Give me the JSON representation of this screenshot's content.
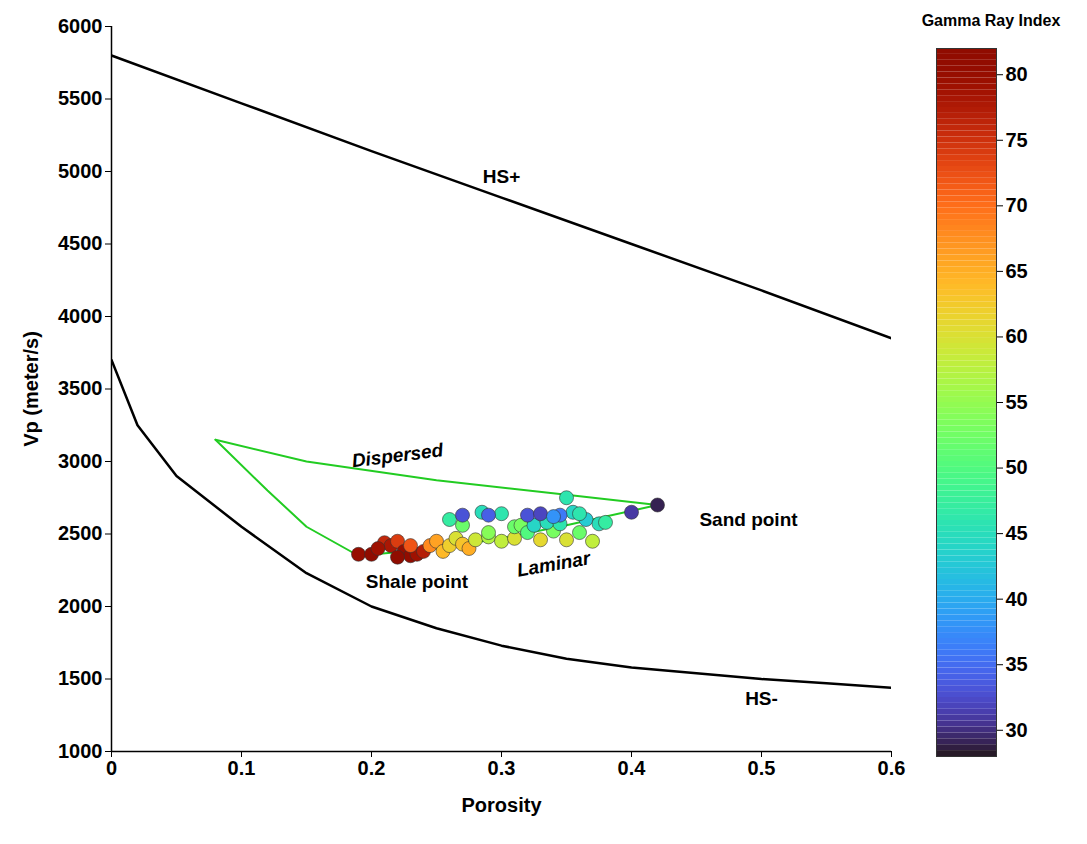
{
  "chart_data": {
    "type": "scatter",
    "x_label": "Porosity",
    "y_label": "Vp (meter/s)",
    "xlim": [
      0,
      0.6
    ],
    "xticks": [
      0,
      0.1,
      0.2,
      0.3,
      0.4,
      0.5,
      0.6
    ],
    "ylim": [
      1000,
      6000
    ],
    "yticks": [
      1000,
      1500,
      2000,
      2500,
      3000,
      3500,
      4000,
      4500,
      5000,
      5500,
      6000
    ],
    "grid": false,
    "legend": false,
    "colorbar": {
      "title": "Gamma Ray Index",
      "range": [
        28,
        82
      ],
      "ticks": [
        30,
        35,
        40,
        45,
        50,
        55,
        60,
        65,
        70,
        75,
        80
      ]
    },
    "points": {
      "x": [
        0.19,
        0.2,
        0.21,
        0.215,
        0.22,
        0.225,
        0.23,
        0.235,
        0.24,
        0.205,
        0.22,
        0.23,
        0.245,
        0.25,
        0.255,
        0.26,
        0.265,
        0.27,
        0.275,
        0.28,
        0.29,
        0.3,
        0.31,
        0.33,
        0.35,
        0.37,
        0.27,
        0.29,
        0.31,
        0.315,
        0.32,
        0.34,
        0.36,
        0.26,
        0.285,
        0.3,
        0.325,
        0.335,
        0.345,
        0.355,
        0.35,
        0.365,
        0.375,
        0.38,
        0.36,
        0.27,
        0.29,
        0.32,
        0.33,
        0.345,
        0.4,
        0.42,
        0.34
      ],
      "y": [
        2360,
        2360,
        2440,
        2420,
        2450,
        2380,
        2350,
        2360,
        2380,
        2400,
        2340,
        2420,
        2420,
        2450,
        2380,
        2420,
        2470,
        2430,
        2400,
        2460,
        2480,
        2450,
        2470,
        2460,
        2460,
        2450,
        2560,
        2510,
        2550,
        2560,
        2510,
        2520,
        2510,
        2600,
        2650,
        2640,
        2560,
        2580,
        2570,
        2650,
        2750,
        2600,
        2570,
        2580,
        2640,
        2630,
        2630,
        2630,
        2640,
        2630,
        2650,
        2700,
        2620
      ],
      "gamma_ray": [
        80,
        82,
        76,
        78,
        74,
        80,
        81,
        79,
        77,
        79,
        82,
        72,
        68,
        66,
        64,
        62,
        60,
        63,
        65,
        59,
        57,
        58,
        60,
        61,
        60,
        58,
        52,
        54,
        52,
        53,
        50,
        53,
        52,
        47,
        45,
        46,
        44,
        45,
        46,
        44,
        46,
        43,
        45,
        47,
        46,
        33,
        34,
        33,
        32,
        36,
        31,
        29,
        38
      ]
    },
    "curves": [
      {
        "label": "HS+",
        "color": "black",
        "label_x": 0.3,
        "label_y": 4960,
        "x": [
          0,
          0.1,
          0.2,
          0.3,
          0.4,
          0.5,
          0.6
        ],
        "y": [
          5800,
          5470,
          5140,
          4820,
          4500,
          4180,
          3850
        ]
      },
      {
        "label": "HS-",
        "color": "black",
        "label_x": 0.5,
        "label_y": 1360,
        "x": [
          0,
          0.02,
          0.05,
          0.1,
          0.15,
          0.2,
          0.25,
          0.3,
          0.35,
          0.4,
          0.45,
          0.5,
          0.55,
          0.6
        ],
        "y": [
          3700,
          3250,
          2900,
          2550,
          2230,
          2000,
          1850,
          1730,
          1640,
          1580,
          1540,
          1500,
          1470,
          1440
        ]
      },
      {
        "label": "Dispersed",
        "color": "#22cc22",
        "label_x": 0.22,
        "label_y": 3040,
        "x": [
          0.08,
          0.15,
          0.25,
          0.35,
          0.42
        ],
        "y": [
          3150,
          3000,
          2870,
          2770,
          2700
        ]
      },
      {
        "color": "#22cc22",
        "x": [
          0.08,
          0.12,
          0.15,
          0.19
        ],
        "y": [
          3150,
          2800,
          2550,
          2350
        ]
      },
      {
        "label": "Laminar",
        "color": "#22cc22",
        "label_x": 0.34,
        "label_y": 2290,
        "x": [
          0.19,
          0.25,
          0.3,
          0.35,
          0.42
        ],
        "y": [
          2350,
          2400,
          2470,
          2560,
          2700
        ]
      }
    ],
    "annotations": [
      {
        "text": "Shale point",
        "x": 0.235,
        "y": 2170
      },
      {
        "text": "Sand point",
        "x": 0.49,
        "y": 2600
      }
    ]
  }
}
